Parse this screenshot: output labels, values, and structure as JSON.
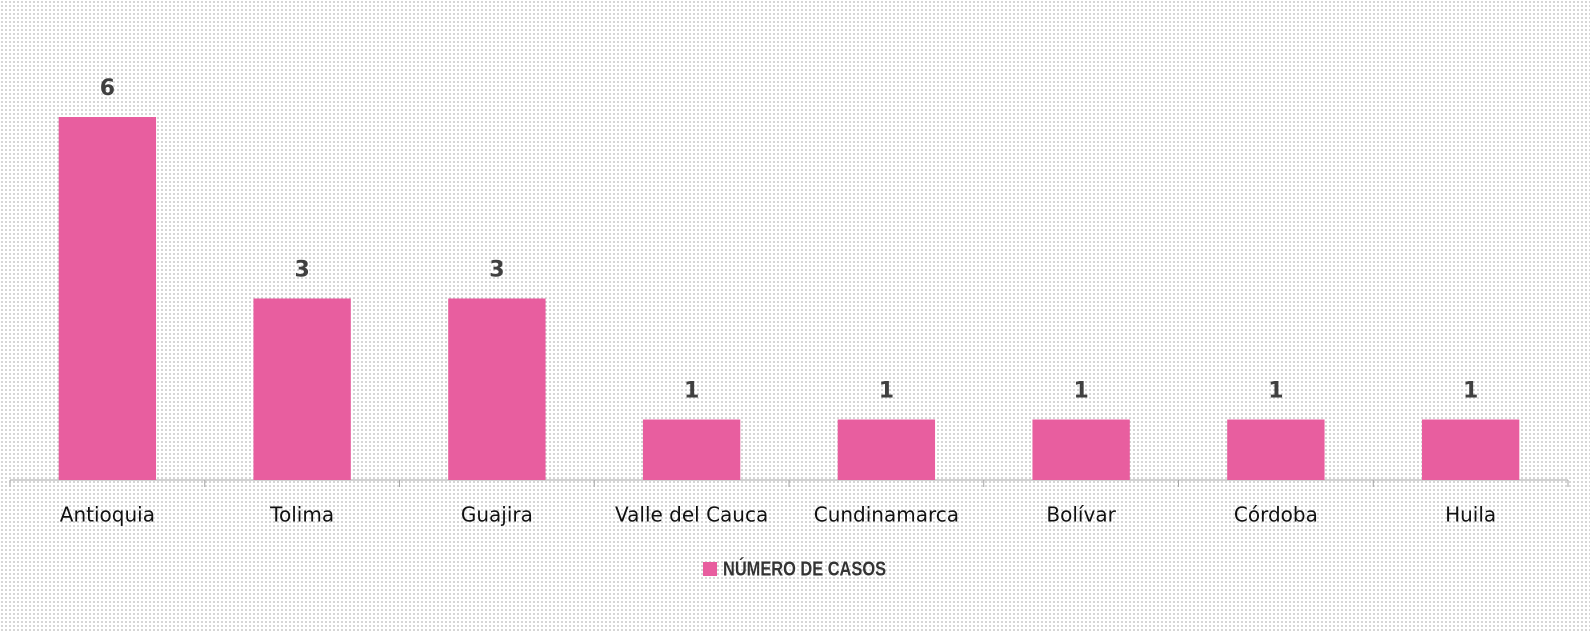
{
  "chart_data": {
    "type": "bar",
    "categories": [
      "Antioquia",
      "Tolima",
      "Guajira",
      "Valle del Cauca",
      "Cundinamarca",
      "Bolívar",
      "Córdoba",
      "Huila"
    ],
    "series": [
      {
        "name": "NÚMERO DE CASOS",
        "color": "#e85e9f",
        "values": [
          6,
          3,
          3,
          1,
          1,
          1,
          1,
          1
        ]
      }
    ],
    "data_labels": true,
    "legend": "bottom"
  }
}
